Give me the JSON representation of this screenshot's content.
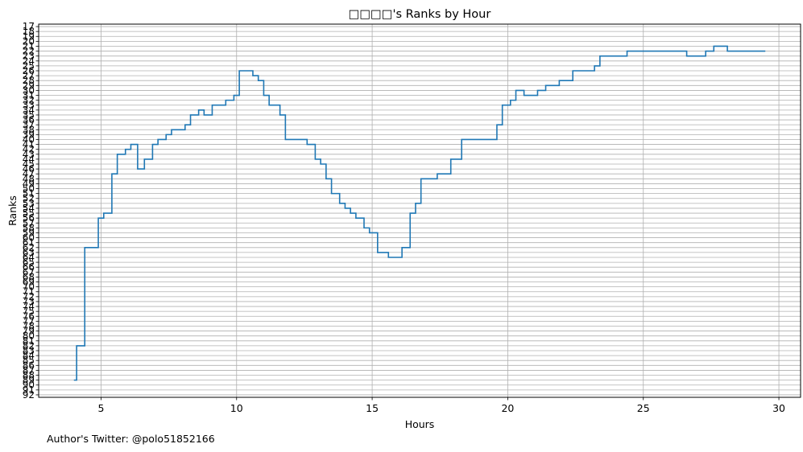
{
  "credit": "Author's Twitter: @polo51852166",
  "chart_data": {
    "type": "line",
    "step": "post",
    "title": "□□□□'s Ranks by Hour",
    "xlabel": "Hours",
    "ylabel": "Ranks",
    "xlim": [
      2.7,
      30.8
    ],
    "ylim": [
      92,
      17
    ],
    "y_inverted": true,
    "grid": true,
    "line_color": "#1f77b4",
    "grid_color": "#b0b0b0",
    "x_ticks": [
      5,
      10,
      15,
      20,
      25,
      30
    ],
    "y_ticks": [
      17,
      18,
      19,
      20,
      21,
      22,
      23,
      24,
      25,
      26,
      27,
      28,
      29,
      30,
      31,
      32,
      33,
      34,
      35,
      36,
      37,
      38,
      39,
      40,
      41,
      42,
      43,
      44,
      45,
      46,
      47,
      48,
      49,
      50,
      51,
      52,
      53,
      54,
      55,
      56,
      57,
      58,
      59,
      60,
      61,
      62,
      63,
      64,
      65,
      66,
      67,
      68,
      69,
      70,
      71,
      72,
      73,
      74,
      75,
      76,
      77,
      78,
      79,
      80,
      81,
      82,
      83,
      84,
      85,
      86,
      87,
      88,
      89,
      90,
      91,
      92
    ],
    "series": [
      {
        "x": [
          4.0,
          4.1,
          4.4,
          4.9,
          5.1,
          5.4,
          5.6,
          5.9,
          6.1,
          6.35,
          6.6,
          6.9,
          7.1,
          7.4,
          7.6,
          8.1,
          8.3,
          8.6,
          8.8,
          9.1,
          9.6,
          9.9,
          10.1,
          10.6,
          10.8,
          11.0,
          11.2,
          11.6,
          11.8,
          12.6,
          12.9,
          13.1,
          13.3,
          13.5,
          13.8,
          14.0,
          14.2,
          14.4,
          14.7,
          14.9,
          15.2,
          15.6,
          16.1,
          16.4,
          16.6,
          16.8,
          17.4,
          17.9,
          18.3,
          18.6,
          19.6,
          19.8,
          20.1,
          20.3,
          20.6,
          21.1,
          21.4,
          21.9,
          22.4,
          23.2,
          23.4,
          24.4,
          26.6,
          27.3,
          27.6,
          28.1,
          29.5
        ],
        "y": [
          89,
          82,
          62,
          56,
          55,
          47,
          43,
          42,
          41,
          46,
          44,
          41,
          40,
          39,
          38,
          37,
          35,
          34,
          35,
          33,
          32,
          31,
          26,
          27,
          28,
          31,
          33,
          35,
          40,
          41,
          44,
          45,
          48,
          51,
          53,
          54,
          55,
          56,
          58,
          59,
          63,
          64,
          62,
          55,
          53,
          48,
          47,
          44,
          40,
          40,
          37,
          33,
          32,
          30,
          31,
          30,
          29,
          28,
          26,
          25,
          23,
          22,
          23,
          22,
          21,
          22,
          22
        ]
      }
    ]
  }
}
